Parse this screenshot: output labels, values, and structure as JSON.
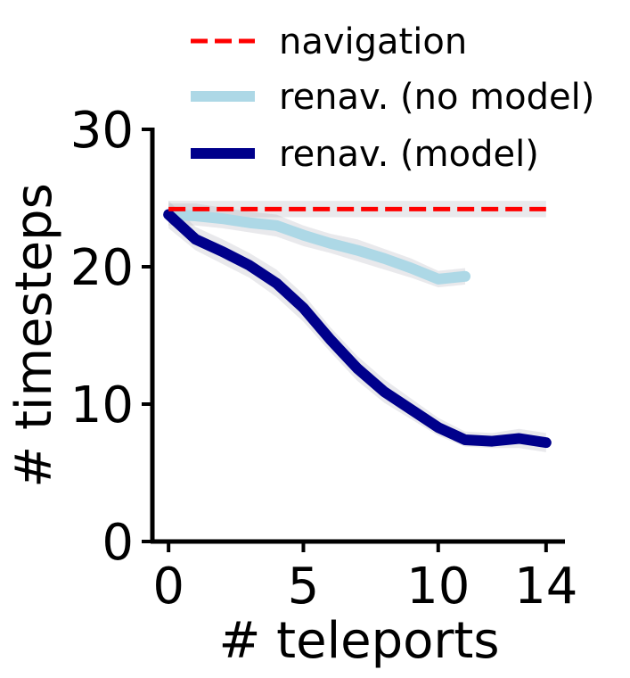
{
  "chart_data": {
    "type": "line",
    "xlabel": "# teleports",
    "ylabel": "# timesteps",
    "xlim": [
      -0.6,
      14.7
    ],
    "ylim": [
      0,
      30
    ],
    "xticks": [
      0,
      5,
      10,
      14
    ],
    "yticks": [
      0,
      10,
      20,
      30
    ],
    "grid": false,
    "legend_position": "top",
    "series": [
      {
        "name": "navigation",
        "style": "dashed",
        "color": "#ff0000",
        "x": [
          0,
          14
        ],
        "y": [
          24.2,
          24.2
        ],
        "band_low": [
          23.6,
          23.6
        ],
        "band_high": [
          24.8,
          24.8
        ]
      },
      {
        "name": "renav. (no model)",
        "style": "solid",
        "color": "#add8e6",
        "x": [
          0,
          1,
          2,
          3,
          4,
          5,
          6,
          7,
          8,
          9,
          10,
          11
        ],
        "y": [
          23.8,
          23.7,
          23.5,
          23.2,
          23.0,
          22.3,
          21.7,
          21.2,
          20.6,
          19.9,
          19.1,
          19.3
        ],
        "band_low": [
          23.0,
          23.0,
          22.8,
          22.5,
          22.2,
          21.5,
          21.0,
          20.4,
          19.8,
          19.2,
          18.5,
          18.7
        ],
        "band_high": [
          24.6,
          24.6,
          24.3,
          24.0,
          23.8,
          23.0,
          22.4,
          22.0,
          21.3,
          20.6,
          19.7,
          19.9
        ]
      },
      {
        "name": "renav. (model)",
        "style": "solid",
        "color": "#00008b",
        "x": [
          0,
          1,
          2,
          3,
          4,
          5,
          6,
          7,
          8,
          9,
          10,
          11,
          12,
          13,
          14
        ],
        "y": [
          23.8,
          22.0,
          21.1,
          20.1,
          18.8,
          17.0,
          14.7,
          12.6,
          10.9,
          9.6,
          8.3,
          7.4,
          7.3,
          7.5,
          7.2
        ],
        "band_low": [
          22.8,
          21.2,
          20.2,
          19.2,
          17.8,
          16.0,
          13.8,
          11.7,
          10.1,
          8.9,
          7.7,
          6.9,
          6.8,
          6.8,
          6.5
        ],
        "band_high": [
          24.8,
          22.9,
          22.0,
          21.0,
          19.8,
          18.0,
          15.6,
          13.5,
          11.8,
          10.4,
          9.0,
          8.0,
          7.9,
          8.2,
          7.9
        ]
      }
    ]
  }
}
